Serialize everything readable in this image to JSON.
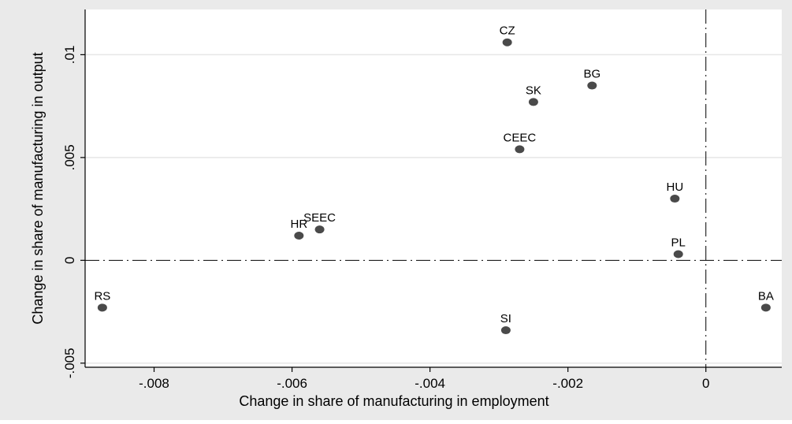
{
  "chart_data": {
    "type": "scatter",
    "title": "",
    "xlabel": "Change in share of manufacturing in employment",
    "ylabel": "Change in share of manufacturing in output",
    "xlim": [
      -0.009,
      0.0011
    ],
    "ylim": [
      -0.0052,
      0.0122
    ],
    "x_ticks": [
      -0.008,
      -0.006,
      -0.004,
      -0.002,
      0
    ],
    "x_tick_labels": [
      "-.008",
      "-.006",
      "-.004",
      "-.002",
      "0"
    ],
    "y_ticks": [
      -0.005,
      0,
      0.005,
      0.01
    ],
    "y_tick_labels": [
      "-.005",
      "0",
      ".005",
      ".01"
    ],
    "grid": "horizontal",
    "reference_lines": {
      "x": 0,
      "y": 0,
      "style": "dash-dot"
    },
    "colors": {
      "outer_background": "#eaeaea",
      "plot_background": "#ffffff",
      "marker": "#4a4a4a",
      "gridline": "#e6e6e6"
    },
    "points": [
      {
        "label": "CZ",
        "x": -0.00288,
        "y": 0.0106
      },
      {
        "label": "BG",
        "x": -0.00165,
        "y": 0.0085
      },
      {
        "label": "SK",
        "x": -0.0025,
        "y": 0.0077
      },
      {
        "label": "CEEC",
        "x": -0.0027,
        "y": 0.0054
      },
      {
        "label": "HU",
        "x": -0.00045,
        "y": 0.003
      },
      {
        "label": "SEEC",
        "x": -0.0056,
        "y": 0.0015
      },
      {
        "label": "HR",
        "x": -0.0059,
        "y": 0.0012
      },
      {
        "label": "PL",
        "x": -0.0004,
        "y": 0.0003
      },
      {
        "label": "RS",
        "x": -0.00875,
        "y": -0.0023
      },
      {
        "label": "BA",
        "x": 0.00087,
        "y": -0.0023
      },
      {
        "label": "SI",
        "x": -0.0029,
        "y": -0.0034
      }
    ]
  }
}
